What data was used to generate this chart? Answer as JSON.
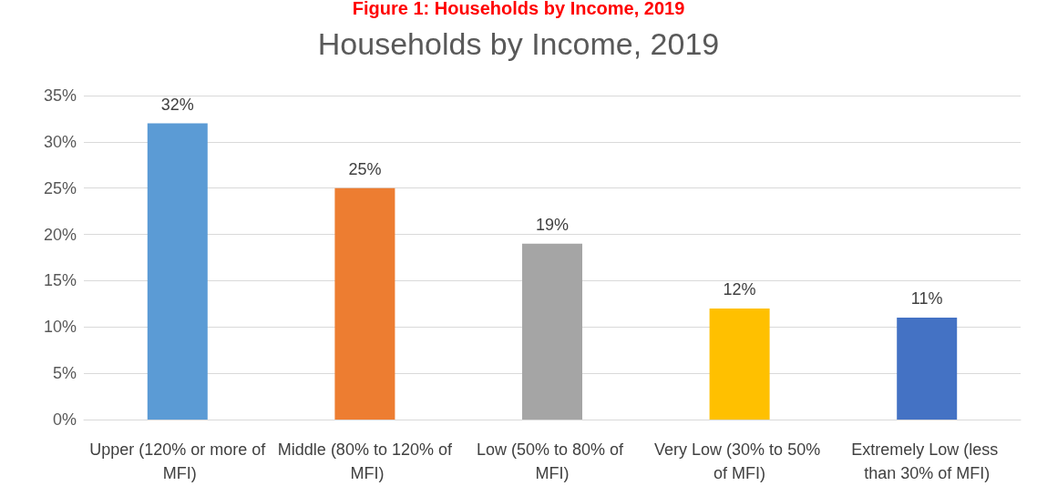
{
  "chart_data": {
    "type": "bar",
    "title": "Households by Income, 2019",
    "annotations": [
      "Figure 1: Households by Income, 2019"
    ],
    "categories": [
      "Upper (120% or more of MFI)",
      "Middle (80% to 120% of MFI)",
      "Low (50% to 80% of MFI)",
      "Very Low (30% to 50% of MFI)",
      "Extremely Low (less than 30% of MFI)"
    ],
    "values": [
      32,
      25,
      19,
      12,
      11
    ],
    "colors": [
      "#5b9bd5",
      "#ed7d31",
      "#a5a5a5",
      "#ffc000",
      "#4472c4"
    ],
    "value_labels": [
      "32%",
      "25%",
      "19%",
      "12%",
      "11%"
    ],
    "ylim": [
      0,
      35
    ],
    "yticks": [
      {
        "value": 0,
        "label": "0%"
      },
      {
        "value": 5,
        "label": "5%"
      },
      {
        "value": 10,
        "label": "10%"
      },
      {
        "value": 15,
        "label": "15%"
      },
      {
        "value": 20,
        "label": "20%"
      },
      {
        "value": 25,
        "label": "25%"
      },
      {
        "value": 30,
        "label": "30%"
      },
      {
        "value": 35,
        "label": "35%"
      }
    ],
    "grid": "y"
  }
}
